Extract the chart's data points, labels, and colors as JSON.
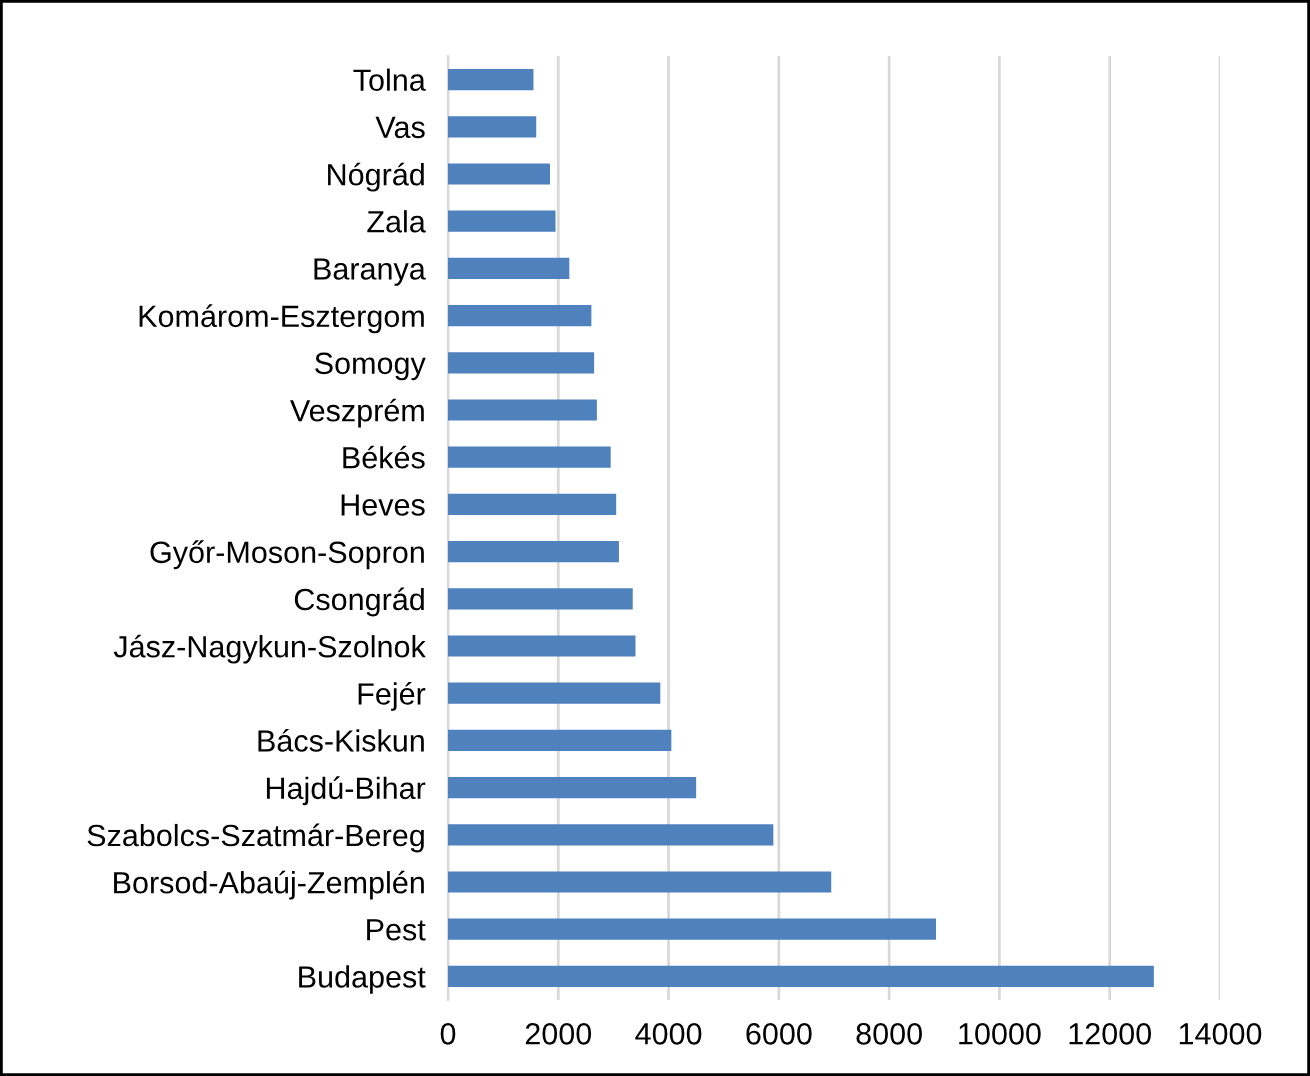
{
  "chart_data": {
    "type": "bar",
    "orientation": "horizontal",
    "categories": [
      "Tolna",
      "Vas",
      "Nógrád",
      "Zala",
      "Baranya",
      "Komárom-Esztergom",
      "Somogy",
      "Veszprém",
      "Békés",
      "Heves",
      "Győr-Moson-Sopron",
      "Csongrád",
      "Jász-Nagykun-Szolnok",
      "Fejér",
      "Bács-Kiskun",
      "Hajdú-Bihar",
      "Szabolcs-Szatmár-Bereg",
      "Borsod-Abaúj-Zemplén",
      "Pest",
      "Budapest"
    ],
    "values": [
      1550,
      1600,
      1850,
      1950,
      2200,
      2600,
      2650,
      2700,
      2950,
      3050,
      3100,
      3350,
      3400,
      3850,
      4050,
      4500,
      5900,
      6950,
      8850,
      12800
    ],
    "color": "#4f81bd",
    "xlim": [
      0,
      14000
    ],
    "xticks": [
      0,
      2000,
      4000,
      6000,
      8000,
      10000,
      12000,
      14000
    ],
    "grid": "x"
  }
}
